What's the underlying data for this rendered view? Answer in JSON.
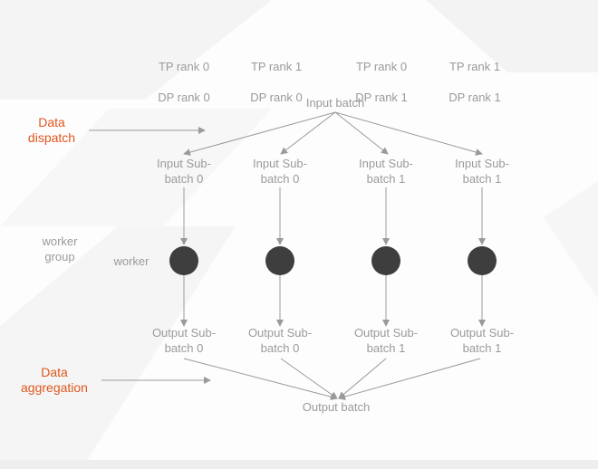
{
  "ranks": [
    {
      "tp": "TP rank 0",
      "dp": "DP rank 0"
    },
    {
      "tp": "TP rank 1",
      "dp": "DP rank 0"
    },
    {
      "tp": "TP rank 0",
      "dp": "DP rank 1"
    },
    {
      "tp": "TP rank 1",
      "dp": "DP rank 1"
    }
  ],
  "input_batch": "Input batch",
  "output_batch": "Output batch",
  "input_sub_batches": [
    "Input Sub-\nbatch 0",
    "Input Sub-\nbatch 0",
    "Input Sub-\nbatch 1",
    "Input Sub-\nbatch 1"
  ],
  "output_sub_batches": [
    "Output Sub-\nbatch 0",
    "Output Sub-\nbatch 0",
    "Output Sub-\nbatch 1",
    "Output Sub-\nbatch 1"
  ],
  "labels": {
    "data_dispatch": "Data\ndispatch",
    "data_aggregation": "Data\naggregation",
    "worker_group": "worker\ngroup",
    "worker": "worker"
  },
  "colors": {
    "accent": "#e0561e",
    "text": "#9a9a9a",
    "node": "#3e3e3e",
    "line": "#9a9a9a"
  }
}
